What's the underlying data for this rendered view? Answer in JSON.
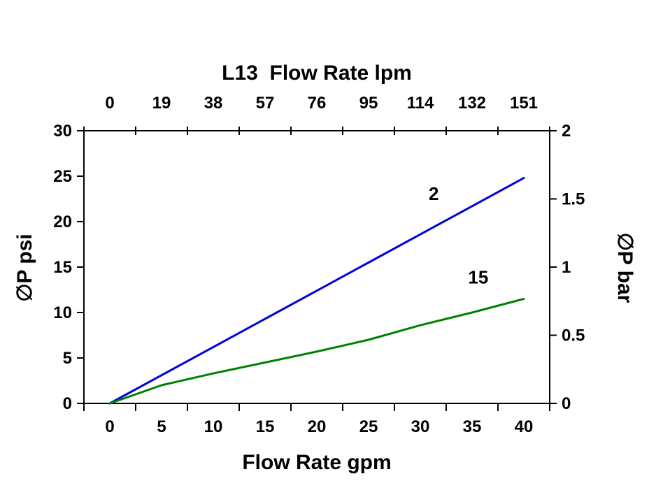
{
  "chart_data": {
    "type": "line",
    "top_axis": {
      "title": "L13  Flow Rate lpm",
      "tick_labels": [
        "0",
        "19",
        "38",
        "57",
        "76",
        "95",
        "114",
        "132",
        "151"
      ],
      "unit": "lpm"
    },
    "bottom_axis": {
      "title": "Flow Rate gpm",
      "tick_labels": [
        "0",
        "5",
        "10",
        "15",
        "20",
        "25",
        "30",
        "35",
        "40"
      ],
      "x_values_gpm": [
        0,
        5,
        10,
        15,
        20,
        25,
        30,
        35,
        40
      ],
      "x_step": 5
    },
    "left_axis": {
      "title": "∅P psi",
      "tick_values": [
        0,
        5,
        10,
        15,
        20,
        25,
        30
      ],
      "range": [
        0,
        30
      ]
    },
    "right_axis": {
      "title": "∅P bar",
      "tick_labels": [
        "0",
        "0.5",
        "1",
        "1.5",
        "2"
      ],
      "tick_values": [
        0,
        0.5,
        1,
        1.5,
        2
      ],
      "range": [
        0,
        2
      ]
    },
    "series": [
      {
        "name": "2",
        "color": "#0000DD",
        "values_psi": [
          0,
          3.1,
          6.2,
          9.3,
          12.4,
          15.5,
          18.6,
          21.7,
          24.8
        ],
        "label_pos": {
          "x_gpm": 31.3,
          "y_psi": 22.4
        }
      },
      {
        "name": "15",
        "color": "#008000",
        "values_psi": [
          0,
          2.0,
          3.3,
          4.5,
          5.7,
          7.0,
          8.6,
          10.0,
          11.5
        ],
        "label_pos": {
          "x_gpm": 35.6,
          "y_psi": 13.2
        }
      }
    ],
    "grid": false,
    "background": "#FFFFFF",
    "text_color": "#000000"
  }
}
